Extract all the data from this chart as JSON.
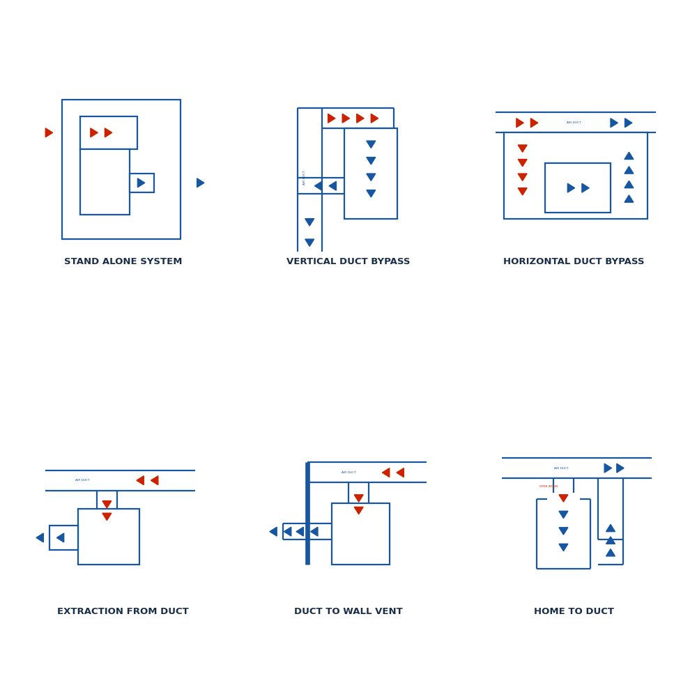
{
  "bg_color": "#ffffff",
  "blue": "#1756a0",
  "red": "#cc2200",
  "dark": "#1a2e4a",
  "lw": 1.6,
  "titles": [
    "STAND ALONE SYSTEM",
    "VERTICAL DUCT BYPASS",
    "HORIZONTAL DUCT BYPASS",
    "EXTRACTION FROM DUCT",
    "DUCT TO WALL VENT",
    "HOME TO DUCT"
  ],
  "title_fontsize": 9.5
}
